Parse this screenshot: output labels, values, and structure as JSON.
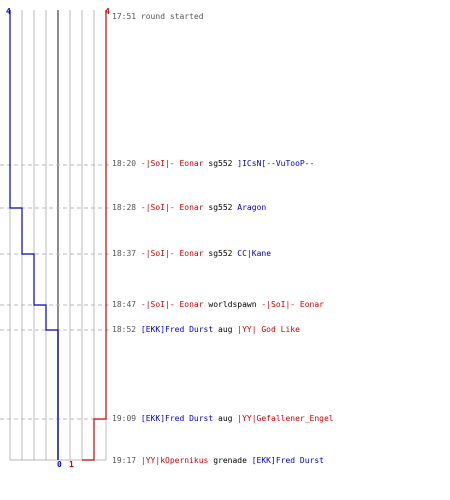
{
  "colors": {
    "team_blue": "#0000cc",
    "team_red": "#cc0000",
    "grid": "#bbbbbb",
    "zero_line": "#666666",
    "dash": "#bbbbbb",
    "time": "#555555"
  },
  "scores": {
    "blue_start": "4",
    "red_start": "4",
    "blue_end": "0",
    "red_end": "1"
  },
  "header": {
    "time": "17:51",
    "message": "round started"
  },
  "chart_data": {
    "type": "line",
    "series": [
      {
        "team": "blue",
        "values": [
          4,
          4,
          3,
          2,
          1,
          0,
          0,
          0,
          0,
          0
        ]
      },
      {
        "team": "red",
        "values": [
          4,
          4,
          4,
          4,
          4,
          4,
          3,
          2,
          1,
          1
        ]
      }
    ]
  },
  "events": [
    {
      "time": "18:20",
      "killer": "-|SoI|- Eonar",
      "killer_team": "red",
      "weapon": "sg552",
      "victim": "]ICsN[--VuTooP--",
      "victim_team": "blue"
    },
    {
      "time": "18:28",
      "killer": "-|SoI|- Eonar",
      "killer_team": "red",
      "weapon": "sg552",
      "victim": "Aragon",
      "victim_team": "blue"
    },
    {
      "time": "18:37",
      "killer": "-|SoI|- Eonar",
      "killer_team": "red",
      "weapon": "sg552",
      "victim": "CC|Kane",
      "victim_team": "blue"
    },
    {
      "time": "18:47",
      "killer": "-|SoI|- Eonar",
      "killer_team": "red",
      "weapon": "worldspawn",
      "victim": "-|SoI|- Eonar",
      "victim_team": "red"
    },
    {
      "time": "18:52",
      "killer": "[EKK]Fred Durst",
      "killer_team": "blue",
      "weapon": "aug",
      "victim": "|YY| God Like",
      "victim_team": "red"
    },
    {
      "time": "19:09",
      "killer": "[EKK]Fred Durst",
      "killer_team": "blue",
      "weapon": "aug",
      "victim": "|YY|Gefallener_Engel",
      "victim_team": "red"
    },
    {
      "time": "19:17",
      "killer": "|YY|kOpernikus",
      "killer_team": "red",
      "weapon": "grenade",
      "victim": "[EKK]Fred Durst",
      "victim_team": "blue"
    }
  ]
}
